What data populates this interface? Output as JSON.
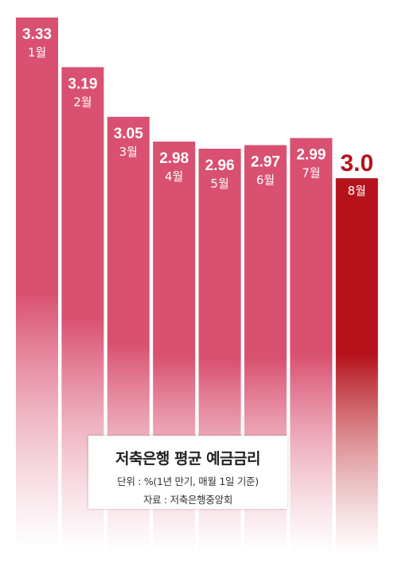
{
  "chart_data": {
    "type": "bar",
    "categories": [
      "1월",
      "2월",
      "3월",
      "4월",
      "5월",
      "6월",
      "7월",
      "8월"
    ],
    "values": [
      3.33,
      3.19,
      3.05,
      2.98,
      2.96,
      2.97,
      2.99,
      3.0
    ],
    "value_labels": [
      "3.33",
      "3.19",
      "3.05",
      "2.98",
      "2.96",
      "2.97",
      "2.99",
      "3.0"
    ],
    "highlight_index": 7,
    "colors": {
      "bar": "#d95070",
      "highlight": "#b5121b",
      "fade": "#ffffff"
    }
  },
  "legend": {
    "title": "저축은행 평균 예금금리",
    "unit": "단위 : %(1년 만기, 매월 1일 기준)",
    "source": "자료 : 저축은행중앙회"
  }
}
